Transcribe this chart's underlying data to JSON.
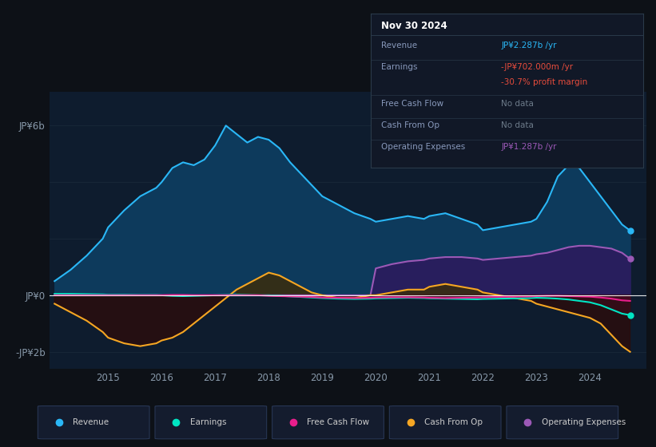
{
  "background_color": "#0d1117",
  "plot_bg_color": "#0e1c2e",
  "colors": {
    "revenue": "#2ab7f6",
    "earnings": "#00e5c3",
    "free_cash_flow": "#e91e8c",
    "cash_from_op": "#f5a623",
    "operating_expenses": "#9b59b6",
    "revenue_fill": "#0d3a5c",
    "opex_fill": "#2d1a5e",
    "earn_fill_pos": "#0d3a2a",
    "earn_fill_neg": "#3a0d1a",
    "cfo_fill_pos": "#3a2d0d",
    "cfo_fill_neg": "#2a0d0d"
  },
  "legend_items": [
    {
      "label": "Revenue",
      "color": "#2ab7f6"
    },
    {
      "label": "Earnings",
      "color": "#00e5c3"
    },
    {
      "label": "Free Cash Flow",
      "color": "#e91e8c"
    },
    {
      "label": "Cash From Op",
      "color": "#f5a623"
    },
    {
      "label": "Operating Expenses",
      "color": "#9b59b6"
    }
  ],
  "info_box_title": "Nov 30 2024",
  "info_rows": [
    {
      "label": "Revenue",
      "value": "JP¥2.287b /yr",
      "vcolor": "#2ab7f6"
    },
    {
      "label": "Earnings",
      "value": "-JP¥702.000m /yr",
      "vcolor": "#e74c3c"
    },
    {
      "label": "",
      "value": "-30.7% profit margin",
      "vcolor": "#e74c3c"
    },
    {
      "label": "Free Cash Flow",
      "value": "No data",
      "vcolor": "#6c7a89"
    },
    {
      "label": "Cash From Op",
      "value": "No data",
      "vcolor": "#6c7a89"
    },
    {
      "label": "Operating Expenses",
      "value": "JP¥1.287b /yr",
      "vcolor": "#9b59b6"
    }
  ]
}
